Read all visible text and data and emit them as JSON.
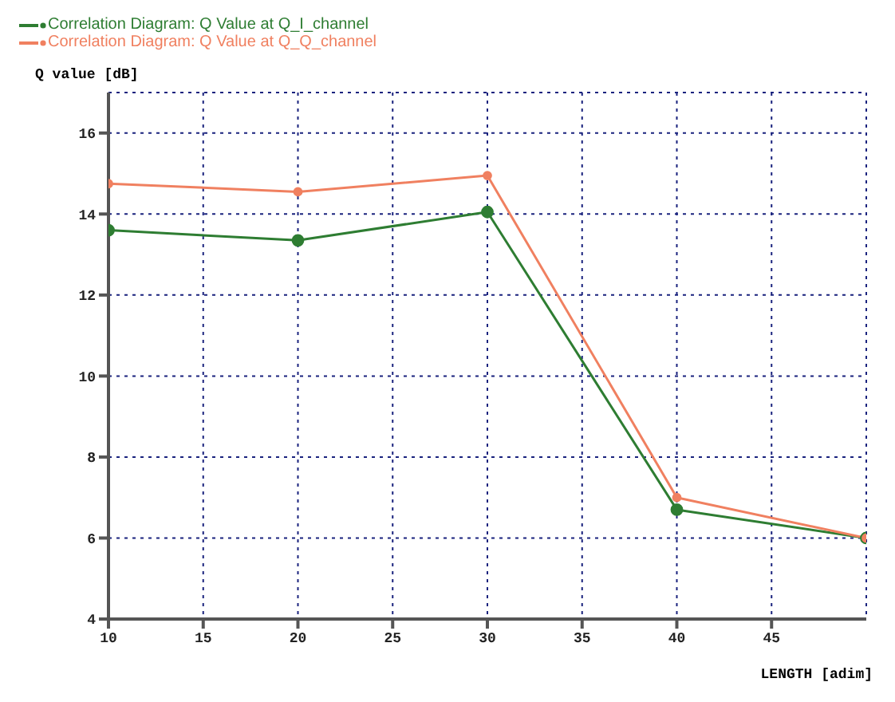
{
  "chart_data": {
    "type": "line",
    "xlabel": "LENGTH [adim]",
    "ylabel": "Q value   [dB]",
    "x": [
      10,
      20,
      30,
      40,
      50
    ],
    "series": [
      {
        "name": "Correlation Diagram: Q Value at Q_I_channel",
        "color": "#2e7d32",
        "values": [
          13.6,
          13.35,
          14.05,
          6.7,
          6
        ]
      },
      {
        "name": "Correlation Diagram: Q Value at Q_Q_channel",
        "color": "#f08060",
        "values": [
          14.75,
          14.55,
          14.95,
          7,
          6
        ]
      }
    ],
    "xlim": [
      10,
      50
    ],
    "xticks": [
      10,
      15,
      20,
      25,
      30,
      35,
      40,
      45
    ],
    "ylim": [
      4,
      17
    ],
    "yticks": [
      4,
      6,
      8,
      10,
      12,
      14,
      16
    ],
    "grid": true,
    "legend": "top left",
    "marker": "circle",
    "line_style": "solid"
  }
}
